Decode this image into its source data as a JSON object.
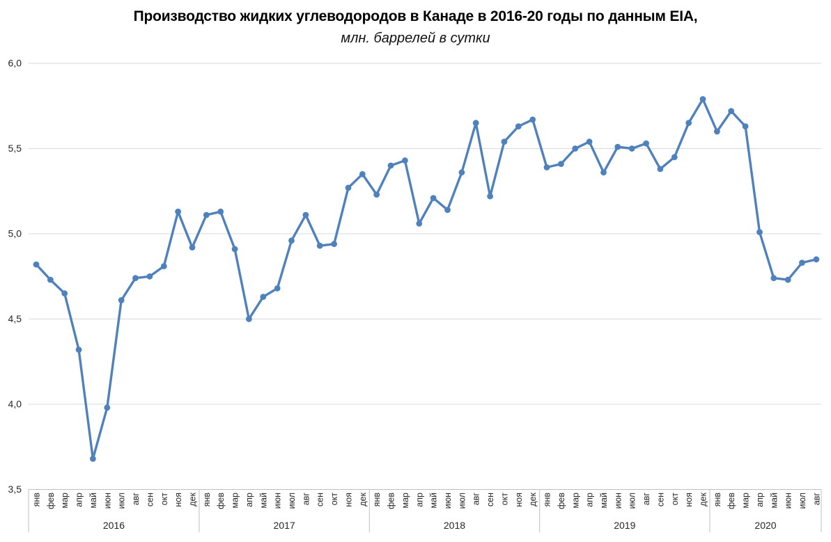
{
  "chart_data": {
    "type": "line",
    "title": "Производство жидких углеводородов в Канаде в 2016-20 годы по данным EIA,",
    "subtitle": "млн. баррелей в сутки",
    "ylabel": "млн. баррелей в сутки",
    "ylim": [
      3.5,
      6.0
    ],
    "y_ticks": [
      {
        "label": "6,0",
        "value": 6.0
      },
      {
        "label": "5,5",
        "value": 5.5
      },
      {
        "label": "5,0",
        "value": 5.0
      },
      {
        "label": "4,5",
        "value": 4.5
      },
      {
        "label": "4,0",
        "value": 4.0
      },
      {
        "label": "3,5",
        "value": 3.5
      }
    ],
    "month_labels": [
      "янв",
      "фев",
      "мар",
      "апр",
      "май",
      "июн",
      "июл",
      "авг",
      "сен",
      "окт",
      "ноя",
      "дек"
    ],
    "grid": true,
    "legend_position": "none",
    "series": [
      {
        "name": "Производство жидких углеводородов",
        "years": [
          {
            "label": "2016",
            "values": [
              4.82,
              4.73,
              4.65,
              4.32,
              3.68,
              3.98,
              4.61,
              4.74,
              4.75,
              4.81,
              5.13,
              4.92
            ]
          },
          {
            "label": "2017",
            "values": [
              5.11,
              5.13,
              4.91,
              4.5,
              4.63,
              4.68,
              4.96,
              5.11,
              4.93,
              4.94,
              5.27,
              5.35
            ]
          },
          {
            "label": "2018",
            "values": [
              5.23,
              5.4,
              5.43,
              5.06,
              5.21,
              5.14,
              5.36,
              5.65,
              5.22,
              5.54,
              5.63,
              5.67
            ]
          },
          {
            "label": "2019",
            "values": [
              5.39,
              5.41,
              5.5,
              5.54,
              5.36,
              5.51,
              5.5,
              5.53,
              5.38,
              5.45,
              5.65,
              5.79
            ]
          },
          {
            "label": "2020",
            "values": [
              5.6,
              5.72,
              5.63,
              5.01,
              4.74,
              4.73,
              4.83,
              4.85
            ]
          }
        ]
      }
    ],
    "colors": {
      "line": "#4F81BD",
      "marker": "#4F81BD",
      "gridline": "#d9d9d9",
      "axis_line": "#bfbfbf",
      "tick_text": "#262626",
      "year_text": "#262626"
    }
  }
}
